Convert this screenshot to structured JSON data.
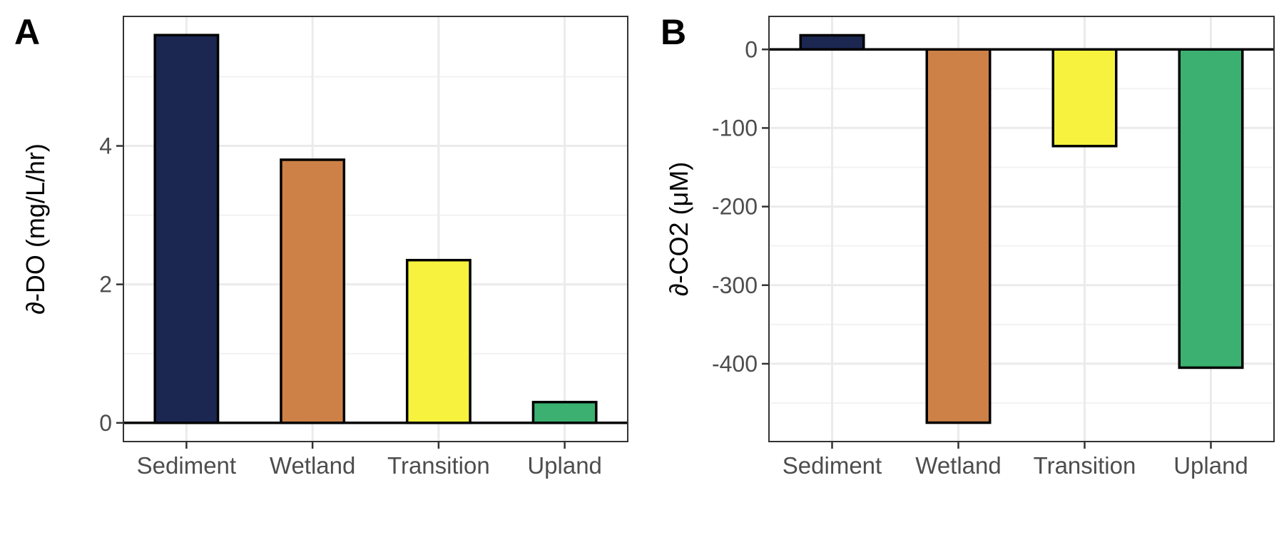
{
  "chart_data": [
    {
      "panel": "A",
      "type": "bar",
      "categories": [
        "Sediment",
        "Wetland",
        "Transition",
        "Upland"
      ],
      "values": [
        5.6,
        3.8,
        2.35,
        0.3
      ],
      "colors": [
        "#1b2750",
        "#cd8147",
        "#f7f23d",
        "#3bb070"
      ],
      "xlabel": "",
      "ylabel": "∂-DO (mg/L/hr)",
      "ylim": [
        -0.27,
        5.87
      ],
      "yticks": [
        0,
        2,
        4
      ],
      "yminor": [
        1,
        3,
        5
      ],
      "yticklabels": [
        "0",
        "2",
        "4"
      ],
      "grid": true
    },
    {
      "panel": "B",
      "type": "bar",
      "categories": [
        "Sediment",
        "Wetland",
        "Transition",
        "Upland"
      ],
      "values": [
        18,
        -475,
        -123,
        -405
      ],
      "colors": [
        "#1b2750",
        "#cd8147",
        "#f7f23d",
        "#3bb070"
      ],
      "xlabel": "",
      "ylabel": "∂-CO2 (μM)",
      "ylim": [
        -499,
        42
      ],
      "yticks": [
        0,
        -100,
        -200,
        -300,
        -400
      ],
      "yminor": [
        -50,
        -150,
        -250,
        -350,
        -450
      ],
      "yticklabels": [
        "0",
        "-100",
        "-200",
        "-300",
        "-400"
      ],
      "grid": true
    }
  ]
}
